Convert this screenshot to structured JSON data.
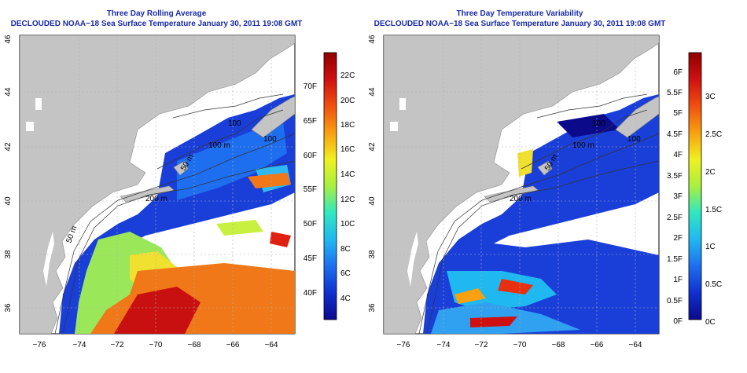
{
  "panels": [
    {
      "id": "left",
      "title": "Three Day Rolling Average",
      "subtitle": "DECLOUDED NOAA−18 Sea Surface Temperature January 30, 2011 19:08 GMT",
      "x_ticks": [
        "−76",
        "−74",
        "−72",
        "−70",
        "−68",
        "−66",
        "−64"
      ],
      "y_ticks": [
        "36",
        "38",
        "40",
        "42",
        "44",
        "46"
      ],
      "contour_labels": [
        "200 m",
        "100 m",
        "50 m",
        "100",
        "100"
      ],
      "colorbar": {
        "colors": [
          "#0a0a8a",
          "#1030d0",
          "#1e6ef0",
          "#20b8f0",
          "#30e8c0",
          "#a8f040",
          "#f0f020",
          "#f8a010",
          "#f05010",
          "#d01010",
          "#900000"
        ],
        "right_labels": [
          "22C",
          "20C",
          "18C",
          "16C",
          "14C",
          "12C",
          "10C",
          "8C",
          "6C",
          "4C"
        ],
        "left_labels": [
          "70F",
          "65F",
          "60F",
          "55F",
          "50F",
          "45F",
          "40F"
        ]
      }
    },
    {
      "id": "right",
      "title": "Three Day Temperature Variability",
      "subtitle": "DECLOUDED NOAA−18 Sea Surface Temperature January 30, 2011 19:08 GMT",
      "x_ticks": [
        "−76",
        "−74",
        "−72",
        "−70",
        "−68",
        "−66",
        "−64"
      ],
      "y_ticks": [
        "36",
        "38",
        "40",
        "42",
        "44",
        "46"
      ],
      "contour_labels": [
        "200 m",
        "100 m",
        "50 m",
        "100",
        "100"
      ],
      "colorbar": {
        "colors": [
          "#0a0a8a",
          "#1030d0",
          "#1e6ef0",
          "#20b8f0",
          "#30e8c0",
          "#a8f040",
          "#f0f020",
          "#f8a010",
          "#f05010",
          "#d01010",
          "#900000"
        ],
        "right_labels": [
          "3C",
          "2.5C",
          "2C",
          "1.5C",
          "1C",
          "0.5C",
          "0C"
        ],
        "left_labels": [
          "6F",
          "5.5F",
          "5F",
          "4.5F",
          "4F",
          "3.5F",
          "3F",
          "2.5F",
          "2F",
          "1.5F",
          "1F",
          "0.5F",
          "0F"
        ]
      }
    }
  ]
}
